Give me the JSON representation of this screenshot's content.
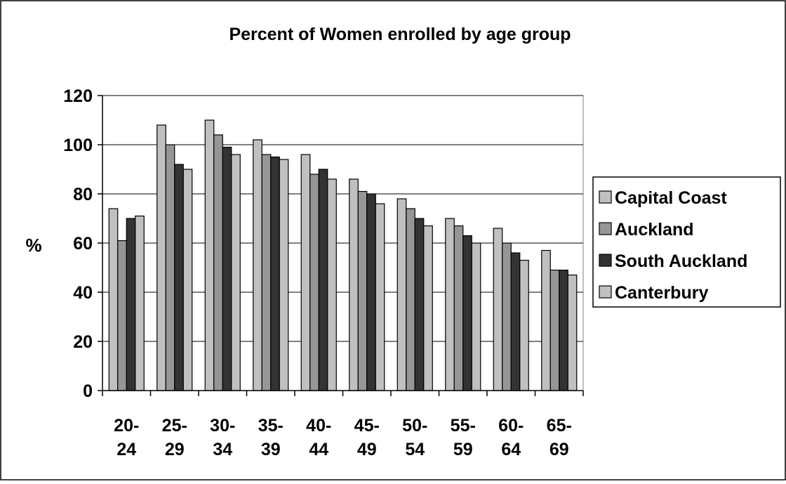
{
  "chart_data": {
    "type": "bar",
    "title": "Percent of Women enrolled by age group",
    "xlabel": "",
    "ylabel": "%",
    "categories": [
      [
        "20-",
        "24"
      ],
      [
        "25-",
        "29"
      ],
      [
        "30-",
        "34"
      ],
      [
        "35-",
        "39"
      ],
      [
        "40-",
        "44"
      ],
      [
        "45-",
        "49"
      ],
      [
        "50-",
        "54"
      ],
      [
        "55-",
        "59"
      ],
      [
        "60-",
        "64"
      ],
      [
        "65-",
        "69"
      ]
    ],
    "ylim": [
      0,
      120
    ],
    "yticks": [
      0,
      20,
      40,
      60,
      80,
      100,
      120
    ],
    "grid": true,
    "legend_position": "right",
    "series": [
      {
        "name": "Capital Coast",
        "color": "#c0c0c0",
        "values": [
          74,
          108,
          110,
          102,
          96,
          86,
          78,
          70,
          66,
          57
        ]
      },
      {
        "name": "Auckland",
        "color": "#969696",
        "values": [
          61,
          100,
          104,
          96,
          88,
          81,
          74,
          67,
          60,
          49
        ]
      },
      {
        "name": "South Auckland",
        "color": "#333333",
        "values": [
          70,
          92,
          99,
          95,
          90,
          80,
          70,
          63,
          56,
          49
        ]
      },
      {
        "name": "Canterbury",
        "color": "#c0c0c0",
        "values": [
          71,
          90,
          96,
          94,
          86,
          76,
          67,
          60,
          53,
          47
        ]
      }
    ]
  }
}
